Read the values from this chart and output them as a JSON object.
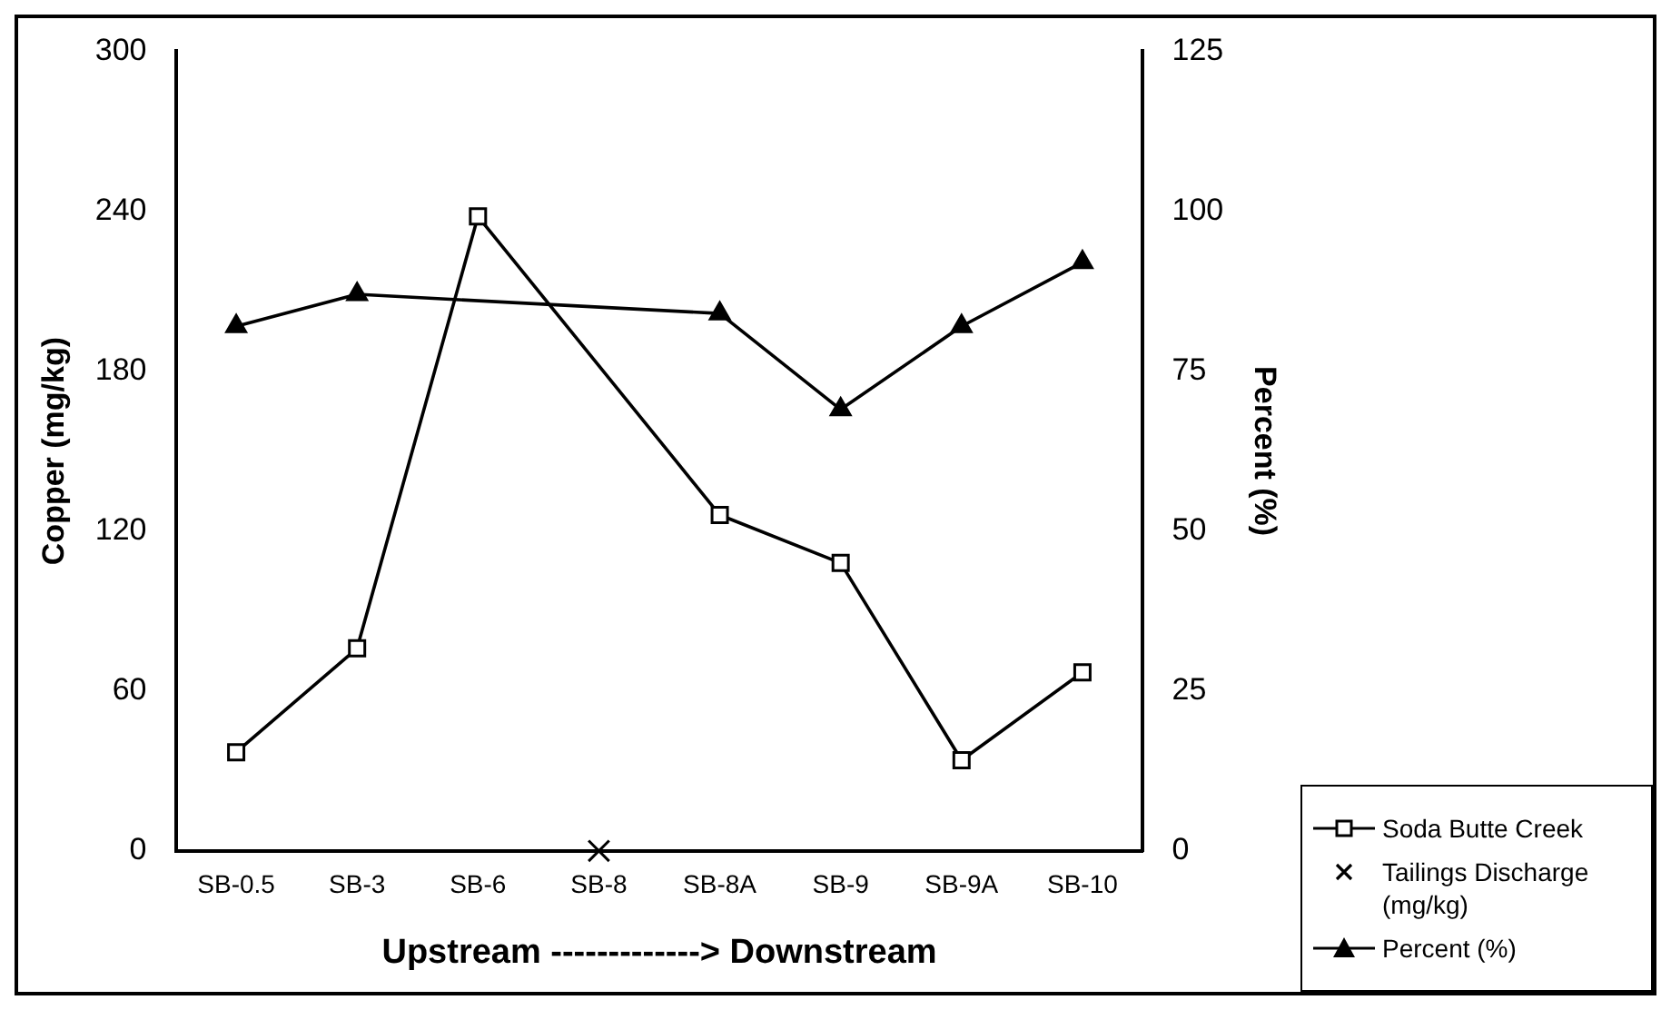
{
  "chart_data": {
    "type": "line",
    "xlabel": "Upstream -------------> Downstream",
    "ylabel": "Copper (mg/kg)",
    "y2label": "Percent (%)",
    "categories": [
      "SB-0.5",
      "SB-3",
      "SB-6",
      "SB-8",
      "SB-8A",
      "SB-9",
      "SB-9A",
      "SB-10"
    ],
    "series": [
      {
        "name": "Soda Butte Creek",
        "color": "#000000",
        "marker": "square",
        "values": [
          37,
          76,
          238,
          null,
          126,
          108,
          34,
          67
        ]
      },
      {
        "name": "Tailings Discharge (mg/kg)",
        "type": "scatter",
        "color": "#000000",
        "marker": "cross",
        "values": [
          null,
          null,
          null,
          0,
          null,
          null,
          null,
          null
        ]
      },
      {
        "name": "Percent (%)",
        "color": "#000000",
        "marker": "triangle",
        "axis": "y2",
        "values": [
          82,
          87,
          null,
          null,
          84,
          69,
          82,
          92
        ]
      }
    ],
    "ylim": [
      0,
      300
    ],
    "yticks": [
      0,
      60,
      120,
      180,
      240,
      300
    ],
    "y2lim": [
      0,
      125
    ],
    "y2ticks": [
      0,
      25,
      50,
      75,
      100,
      125
    ],
    "grid": false,
    "legend": "bottom right"
  }
}
